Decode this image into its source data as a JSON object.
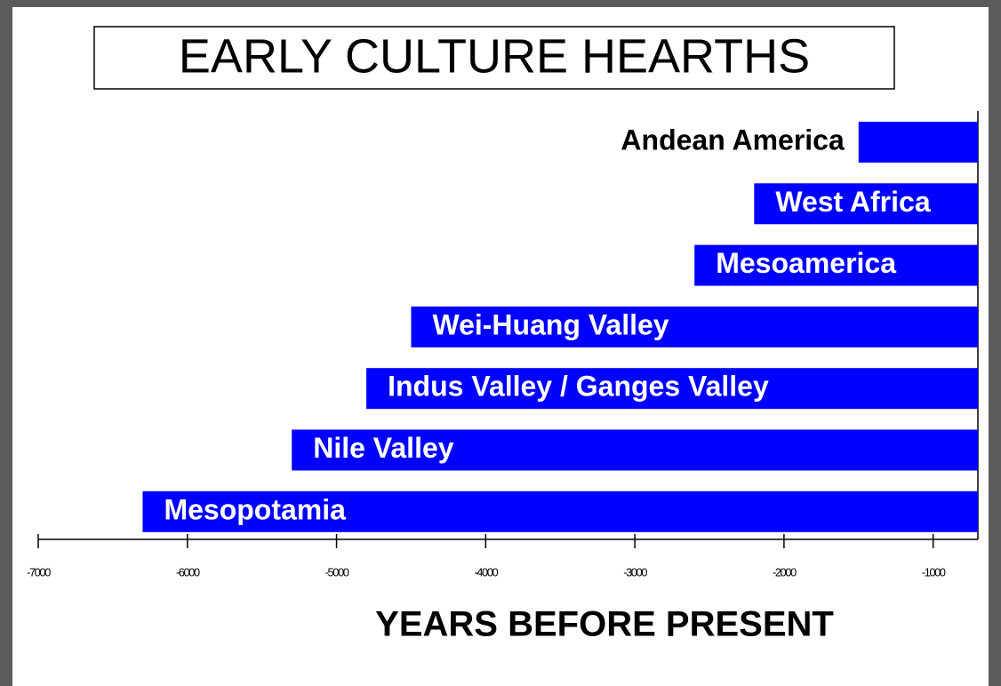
{
  "chart_data": {
    "type": "bar",
    "orientation": "horizontal",
    "title": "EARLY CULTURE HEARTHS",
    "x_label": "YEARS BEFORE PRESENT",
    "categories": [
      "Andean America",
      "West Africa",
      "Mesoamerica",
      "Wei-Huang Valley",
      "Indus Valley / Ganges Valley",
      "Nile Valley",
      "Mesopotamia"
    ],
    "values": [
      -1500,
      -2200,
      -2600,
      -4500,
      -4800,
      -5300,
      -6300
    ],
    "color": "#0000ff",
    "xlim": [
      -7000,
      -700
    ],
    "xticks": [
      -7000,
      -6000,
      -5000,
      -4000,
      -3000,
      -2000,
      -1000
    ]
  }
}
